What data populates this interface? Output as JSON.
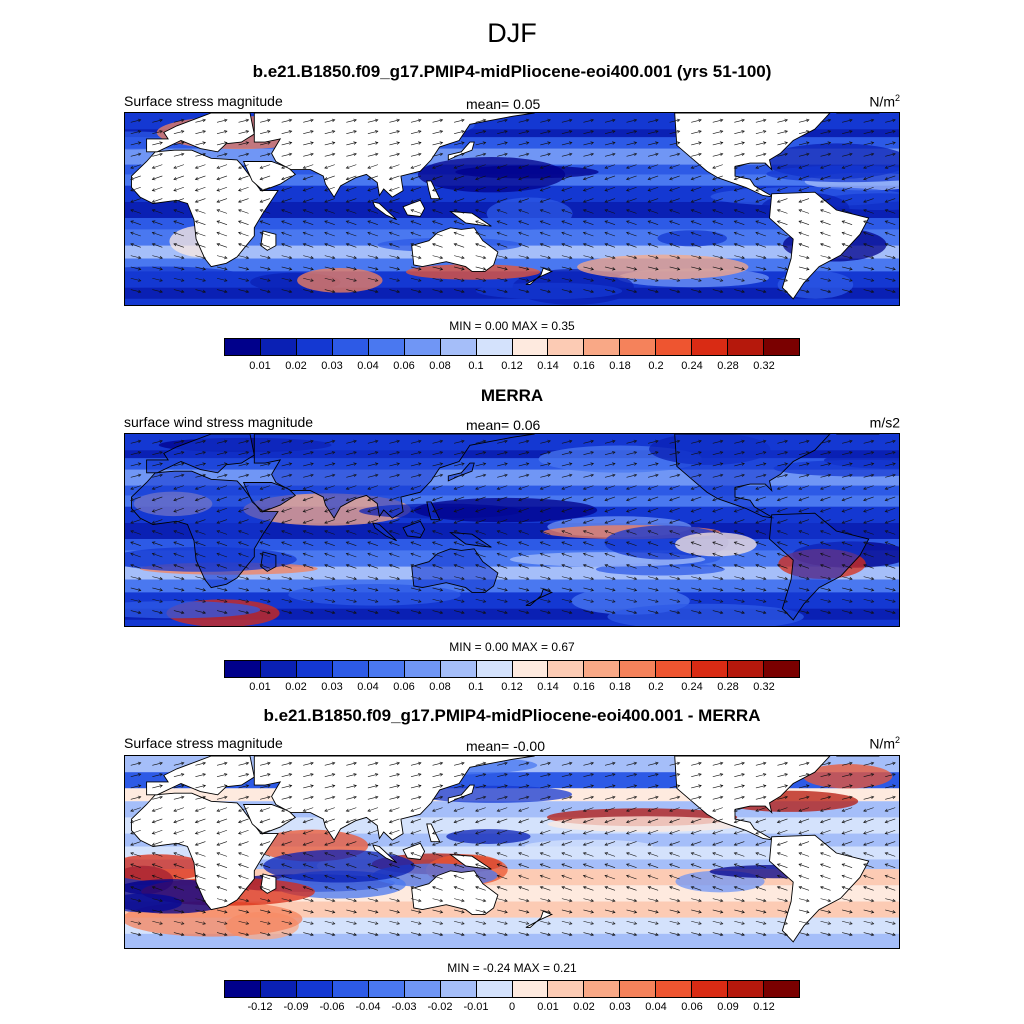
{
  "title": "DJF",
  "panels": [
    {
      "title": "b.e21.B1850.f09_g17.PMIP4-midPliocene-eoi400.001 (yrs 51-100)",
      "left_label": "Surface stress magnitude",
      "mean_text": "mean=   0.05",
      "unit_base": "N/m",
      "unit_sup": "2",
      "minmax": "MIN =   0.00 MAX =   0.35",
      "ticks": [
        "0.01",
        "0.02",
        "0.03",
        "0.04",
        "0.06",
        "0.08",
        "0.1",
        "0.12",
        "0.14",
        "0.16",
        "0.18",
        "0.2",
        "0.24",
        "0.28",
        "0.32"
      ],
      "palette": "seq"
    },
    {
      "title": "MERRA",
      "left_label": "surface wind stress magnitude",
      "mean_text": "mean=   0.06",
      "unit_base": "m/s2",
      "unit_sup": "",
      "minmax": "MIN =   0.00 MAX =   0.67",
      "ticks": [
        "0.01",
        "0.02",
        "0.03",
        "0.04",
        "0.06",
        "0.08",
        "0.1",
        "0.12",
        "0.14",
        "0.16",
        "0.18",
        "0.2",
        "0.24",
        "0.28",
        "0.32"
      ],
      "palette": "seq"
    },
    {
      "title": "b.e21.B1850.f09_g17.PMIP4-midPliocene-eoi400.001 - MERRA",
      "left_label": "Surface stress magnitude",
      "mean_text": "mean=  -0.00",
      "unit_base": "N/m",
      "unit_sup": "2",
      "minmax": "MIN =  -0.24 MAX =   0.21",
      "ticks": [
        "-0.12",
        "-0.09",
        "-0.06",
        "-0.04",
        "-0.03",
        "-0.02",
        "-0.01",
        "0",
        "0.01",
        "0.02",
        "0.03",
        "0.04",
        "0.06",
        "0.09",
        "0.12"
      ],
      "palette": "div"
    }
  ],
  "colors": {
    "levels": [
      "#00008b",
      "#0a20b4",
      "#1438d2",
      "#2d5ae6",
      "#4a78f0",
      "#7096f5",
      "#a5bef9",
      "#d4e2fc",
      "#feeadf",
      "#fccbb4",
      "#f9a886",
      "#f5825b",
      "#ee5530",
      "#d92b14",
      "#b5180c",
      "#7a0000"
    ],
    "land": "#ffffff",
    "coast": "#000000",
    "vector": "#111111"
  },
  "map_data": {
    "projection": "cylindrical equidistant",
    "longitude_range": [
      -20,
      340
    ],
    "latitude_range": [
      -60,
      60
    ],
    "variables": [
      {
        "name": "model surface stress magnitude",
        "mean": 0.05,
        "min": 0.0,
        "max": 0.35,
        "units": "N/m2"
      },
      {
        "name": "MERRA surface wind stress magnitude",
        "mean": 0.06,
        "min": 0.0,
        "max": 0.67,
        "units": "m/s2"
      },
      {
        "name": "difference model - MERRA",
        "mean": -0.0,
        "min": -0.24,
        "max": 0.21,
        "units": "N/m2"
      }
    ]
  }
}
